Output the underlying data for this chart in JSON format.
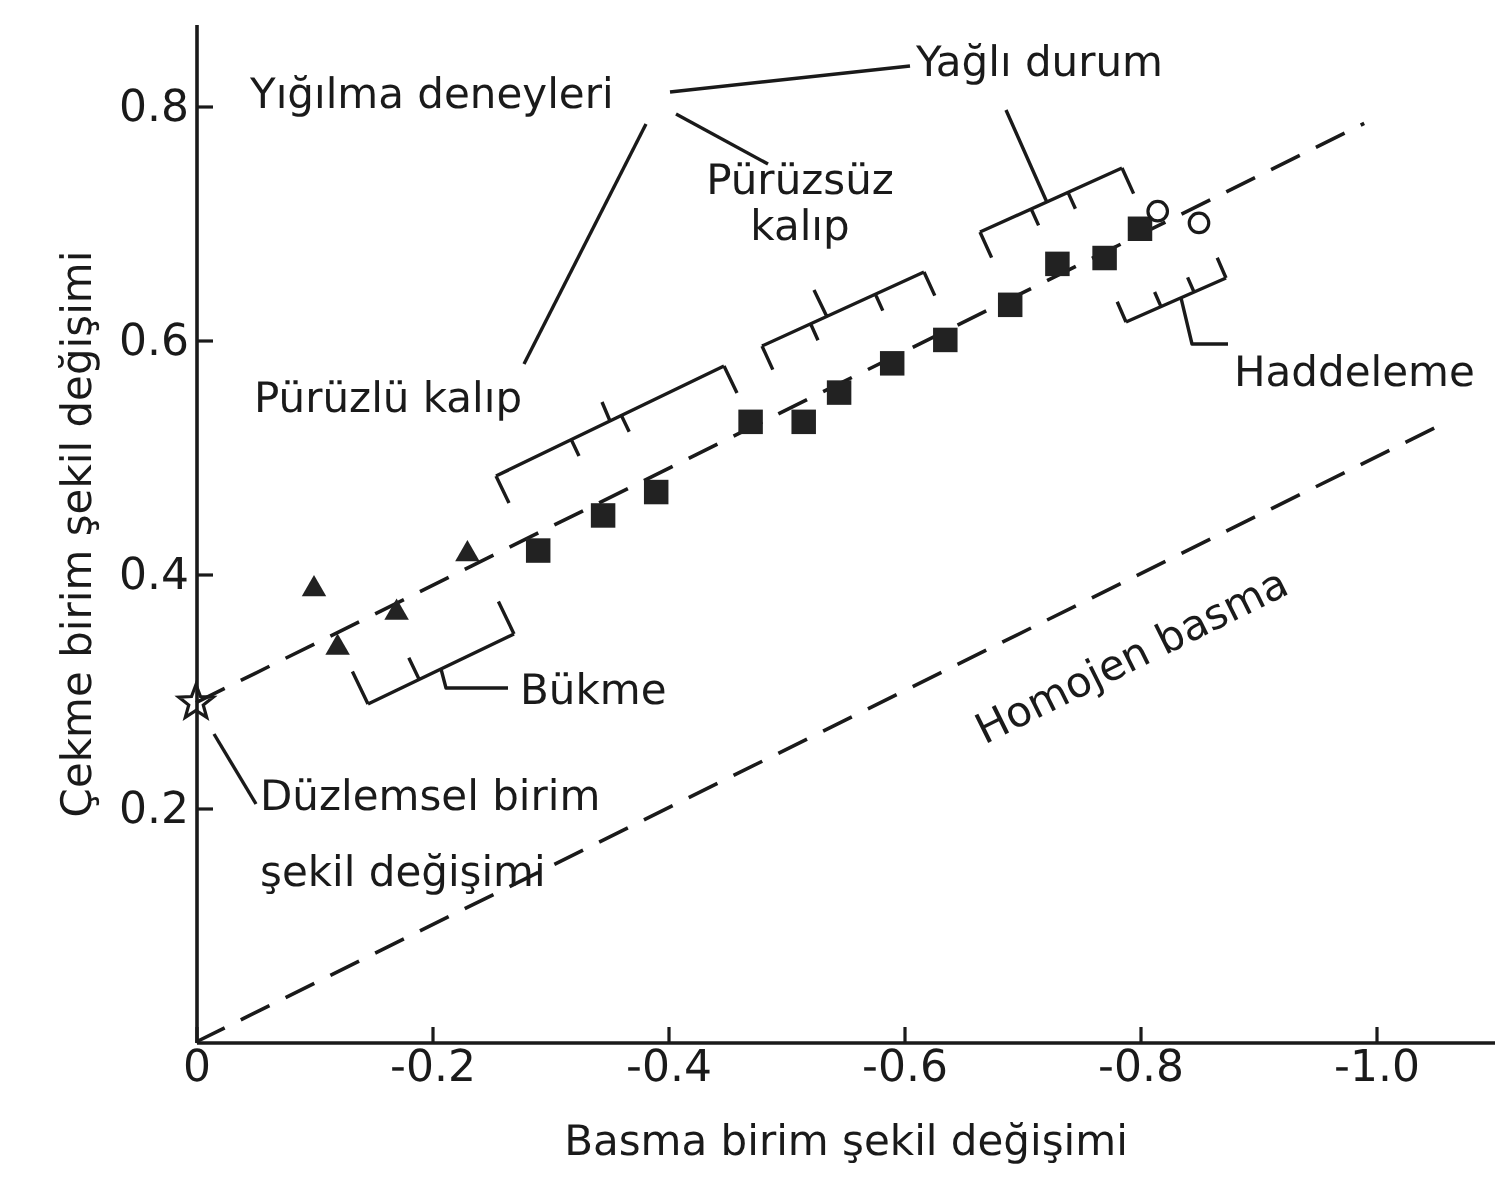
{
  "chart_data": {
    "type": "scatter",
    "xlabel": "Basma birim şekil değişimi",
    "ylabel": "Çekme birim şekil değişimi",
    "xlim": [
      0,
      -1.1
    ],
    "ylim": [
      0,
      0.87
    ],
    "xticks": [
      0,
      -0.2,
      -0.4,
      -0.6,
      -0.8,
      {
        "value": -1,
        "label": "-1.0"
      }
    ],
    "yticks": [
      0.2,
      0.4,
      0.6,
      0.8
    ],
    "line_style": "dashed",
    "annotations": [
      "Yığılma deneyleri",
      "Pürüzlü kalıp",
      "Pürüzsüz kalıp",
      "Yağlı durum",
      "Haddeleme",
      "Bükme",
      "Düzlemsel birim şekil değişimi"
    ],
    "series": [
      {
        "name": "Homojen basma",
        "type": "line",
        "color": "#1a1a1a",
        "x": [
          0,
          -1.05
        ],
        "values": [
          0,
          0.525
        ]
      },
      {
        "type": "line",
        "color": "#1a1a1a",
        "x": [
          0,
          -0.99
        ],
        "values": [
          0.29,
          0.785
        ]
      },
      {
        "marker": "star",
        "color": "#1a1a1a",
        "x": [
          0
        ],
        "values": [
          0.29
        ]
      },
      {
        "marker": "triangle",
        "color": "#222222",
        "x": [
          -0.1,
          -0.12,
          -0.17,
          -0.23
        ],
        "values": [
          0.39,
          0.34,
          0.37,
          0.42
        ]
      },
      {
        "marker": "square",
        "color": "#222222",
        "x": [
          -0.29,
          -0.345,
          -0.39,
          -0.47,
          -0.515,
          -0.545,
          -0.59,
          -0.635,
          -0.69,
          -0.73,
          -0.77,
          -0.8
        ],
        "values": [
          0.42,
          0.45,
          0.47,
          0.53,
          0.53,
          0.555,
          0.58,
          0.6,
          0.63,
          0.665,
          0.67,
          0.695
        ]
      },
      {
        "marker": "circle",
        "color": "#1a1a1a",
        "x": [
          -0.815,
          -0.85
        ],
        "values": [
          0.71,
          0.7
        ]
      }
    ]
  }
}
